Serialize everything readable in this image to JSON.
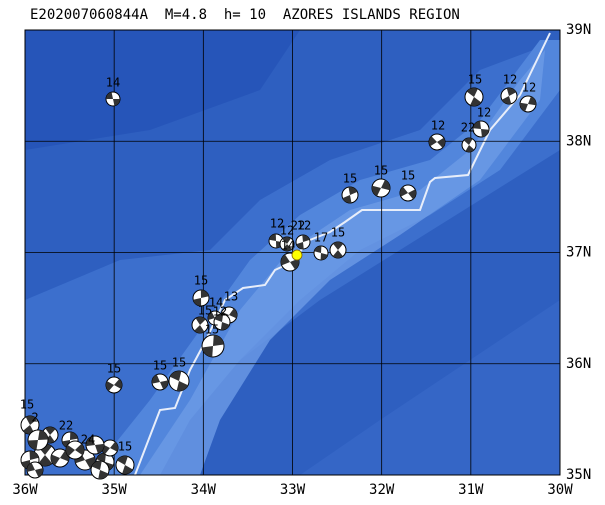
{
  "header": {
    "title": "E202007060844A  M=4.8  h= 10  AZORES ISLANDS REGION"
  },
  "axes": {
    "lon_labels": [
      "36W",
      "35W",
      "34W",
      "33W",
      "32W",
      "31W",
      "30W"
    ],
    "lat_labels": [
      "39N",
      "38N",
      "37N",
      "36N",
      "35N"
    ]
  },
  "events": {
    "labels": [
      "14",
      "15",
      "12",
      "12",
      "12",
      "12",
      "22",
      "15",
      "15",
      "15",
      "12",
      "12",
      "12",
      "22",
      "14",
      "17",
      "15",
      "15",
      "13",
      "14",
      "12",
      "15",
      "15",
      "15",
      "15",
      "15",
      "15",
      "2",
      "22",
      "24",
      "15"
    ]
  }
}
